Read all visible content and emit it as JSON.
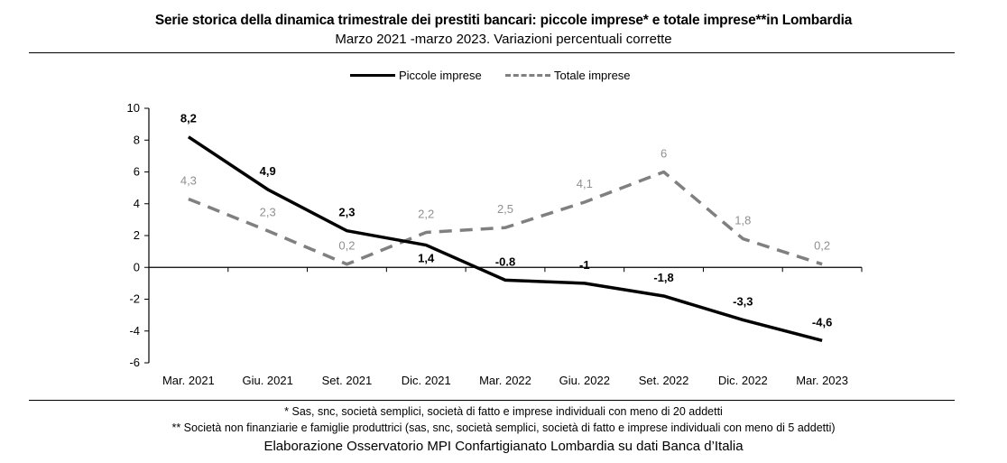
{
  "header": {
    "title": "Serie storica della dinamica trimestrale dei prestiti bancari: piccole imprese* e totale imprese**in Lombardia",
    "subtitle": "Marzo 2021 -marzo 2023. Variazioni percentuali corrette"
  },
  "footer": {
    "note1": "* Sas, snc, società semplici, società di fatto e imprese individuali con meno di 20 addetti",
    "note2": "** Società non finanziarie e famiglie produttrici (sas, snc, società semplici, società di fatto e imprese individuali con meno di 5 addetti)",
    "source": "Elaborazione Osservatorio MPI Confartigianato Lombardia su dati Banca d’Italia"
  },
  "chart_data": {
    "type": "line",
    "title": "Serie storica della dinamica trimestrale dei prestiti bancari: piccole imprese* e totale imprese**in Lombardia",
    "subtitle": "Marzo 2021 -marzo 2023. Variazioni percentuali corrette",
    "categories": [
      "Mar. 2021",
      "Giu. 2021",
      "Set. 2021",
      "Dic. 2021",
      "Mar. 2022",
      "Giu. 2022",
      "Set. 2022",
      "Dic. 2022",
      "Mar. 2023"
    ],
    "series": [
      {
        "name": "Piccole imprese",
        "values": [
          8.2,
          4.9,
          2.3,
          1.4,
          -0.8,
          -1,
          -1.8,
          -3.3,
          -4.6
        ],
        "labels": [
          "8,2",
          "4,9",
          "2,3",
          "1,4",
          "-0.8",
          "-1",
          "-1,8",
          "-3,3",
          "-4,6"
        ],
        "color": "#000000",
        "style": "solid"
      },
      {
        "name": "Totale imprese",
        "values": [
          4.3,
          2.3,
          0.2,
          2.2,
          2.5,
          4.1,
          6,
          1.8,
          0.2
        ],
        "labels": [
          "4,3",
          "2,3",
          "0,2",
          "2,2",
          "2,5",
          "4,1",
          "6",
          "1,8",
          "0,2"
        ],
        "color": "#808080",
        "style": "dashed"
      }
    ],
    "ylim": [
      -6,
      10
    ],
    "yticks": [
      10,
      8,
      6,
      4,
      2,
      0,
      -2,
      -4,
      -6
    ],
    "xlabel": "",
    "ylabel": "",
    "grid": false,
    "legend": "top"
  }
}
